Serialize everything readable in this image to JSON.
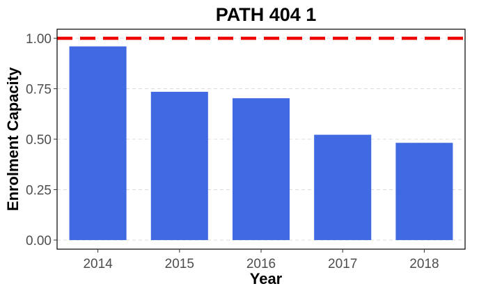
{
  "chart_data": {
    "type": "bar",
    "title": "PATH 404 1",
    "xlabel": "Year",
    "ylabel": "Enrolment Capacity",
    "categories": [
      "2014",
      "2015",
      "2016",
      "2017",
      "2018"
    ],
    "values": [
      0.96,
      0.735,
      0.703,
      0.522,
      0.482
    ],
    "ylim": [
      -0.045,
      1.045
    ],
    "yticks": [
      "0.00",
      "0.25",
      "0.50",
      "0.75",
      "1.00"
    ],
    "reference_line": {
      "value": 1.0,
      "color": "#ee0000",
      "style": "dashed"
    },
    "bar_color": "#4169e1",
    "grid": "horizontal-dashed",
    "legend": "none"
  }
}
